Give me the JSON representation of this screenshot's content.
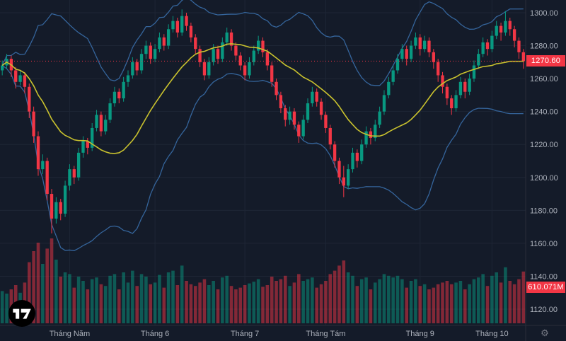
{
  "ui": {
    "price_badge": "1270.60",
    "volume_badge": "610.071M",
    "gear_icon": "⚙",
    "logo_name": "tradingview"
  },
  "colors": {
    "background": "#141b29",
    "grid": "#1e2635",
    "axis_text": "#aeb3bd",
    "separator": "#2a2e39",
    "up": "#089981",
    "down": "#f23645",
    "volume_up": "#089981",
    "volume_down": "#f23645",
    "band": "#35659c",
    "basis": "#c9c22e",
    "last_price_line": "#f23645",
    "badge_bg": "#f23645",
    "badge_text": "#ffffff"
  },
  "chart_data": {
    "type": "candlestick",
    "title": "",
    "xlabel": "",
    "ylabel": "",
    "ylim": [
      1120,
      1300
    ],
    "grid": true,
    "last_price": 1270.6,
    "last_price_label": "1270.60",
    "last_volume_label": "610.071M",
    "y_ticks": [
      {
        "value": 1300,
        "label": "1300.00"
      },
      {
        "value": 1280,
        "label": "1280.00"
      },
      {
        "value": 1260,
        "label": "1260.00"
      },
      {
        "value": 1240,
        "label": "1240.00"
      },
      {
        "value": 1220,
        "label": "1220.00"
      },
      {
        "value": 1200,
        "label": "1200.00"
      },
      {
        "value": 1180,
        "label": "1180.00"
      },
      {
        "value": 1160,
        "label": "1160.00"
      },
      {
        "value": 1140,
        "label": "1140.00"
      },
      {
        "value": 1120,
        "label": "1120.00"
      }
    ],
    "x_ticks": [
      {
        "label": "Tháng Năm",
        "index": 15
      },
      {
        "label": "Tháng 6",
        "index": 34
      },
      {
        "label": "Tháng 7",
        "index": 54
      },
      {
        "label": "Tháng Tám",
        "index": 72
      },
      {
        "label": "Tháng 9",
        "index": 93
      },
      {
        "label": "Tháng 10",
        "index": 109
      }
    ],
    "indicators": {
      "bollinger": {
        "period": 20,
        "stddev": 2
      }
    },
    "candles_format": [
      "open",
      "high",
      "low",
      "close",
      "volume"
    ],
    "candles": [
      [
        1265,
        1271,
        1262,
        1268,
        38
      ],
      [
        1268,
        1275,
        1266,
        1272,
        35
      ],
      [
        1272,
        1274,
        1261,
        1265,
        40
      ],
      [
        1265,
        1267,
        1254,
        1258,
        45
      ],
      [
        1258,
        1265,
        1256,
        1262,
        36
      ],
      [
        1262,
        1264,
        1251,
        1255,
        48
      ],
      [
        1255,
        1257,
        1236,
        1240,
        72
      ],
      [
        1240,
        1243,
        1221,
        1225,
        85
      ],
      [
        1225,
        1228,
        1201,
        1205,
        95
      ],
      [
        1205,
        1214,
        1202,
        1210,
        70
      ],
      [
        1210,
        1212,
        1186,
        1190,
        88
      ],
      [
        1190,
        1193,
        1166,
        1175,
        100
      ],
      [
        1175,
        1188,
        1172,
        1185,
        75
      ],
      [
        1185,
        1187,
        1174,
        1178,
        55
      ],
      [
        1178,
        1198,
        1176,
        1195,
        60
      ],
      [
        1195,
        1208,
        1192,
        1205,
        58
      ],
      [
        1205,
        1207,
        1196,
        1200,
        42
      ],
      [
        1200,
        1218,
        1198,
        1215,
        55
      ],
      [
        1215,
        1225,
        1212,
        1222,
        50
      ],
      [
        1222,
        1224,
        1214,
        1218,
        40
      ],
      [
        1218,
        1233,
        1216,
        1230,
        52
      ],
      [
        1230,
        1241,
        1228,
        1238,
        54
      ],
      [
        1238,
        1240,
        1225,
        1228,
        46
      ],
      [
        1228,
        1238,
        1226,
        1235,
        44
      ],
      [
        1235,
        1248,
        1233,
        1245,
        56
      ],
      [
        1245,
        1255,
        1243,
        1252,
        58
      ],
      [
        1252,
        1254,
        1245,
        1248,
        40
      ],
      [
        1248,
        1261,
        1246,
        1258,
        60
      ],
      [
        1258,
        1265,
        1255,
        1262,
        48
      ],
      [
        1262,
        1273,
        1260,
        1270,
        62
      ],
      [
        1270,
        1272,
        1262,
        1265,
        44
      ],
      [
        1265,
        1278,
        1263,
        1275,
        58
      ],
      [
        1275,
        1283,
        1272,
        1280,
        55
      ],
      [
        1280,
        1282,
        1269,
        1272,
        46
      ],
      [
        1272,
        1281,
        1270,
        1278,
        48
      ],
      [
        1278,
        1288,
        1276,
        1285,
        57
      ],
      [
        1285,
        1287,
        1277,
        1280,
        42
      ],
      [
        1280,
        1293,
        1278,
        1290,
        60
      ],
      [
        1290,
        1298,
        1288,
        1295,
        62
      ],
      [
        1295,
        1297,
        1285,
        1288,
        45
      ],
      [
        1288,
        1302,
        1286,
        1298,
        68
      ],
      [
        1298,
        1300,
        1289,
        1292,
        50
      ],
      [
        1292,
        1294,
        1282,
        1285,
        46
      ],
      [
        1285,
        1287,
        1275,
        1278,
        44
      ],
      [
        1278,
        1280,
        1267,
        1270,
        48
      ],
      [
        1270,
        1272,
        1259,
        1262,
        52
      ],
      [
        1262,
        1273,
        1260,
        1270,
        45
      ],
      [
        1270,
        1281,
        1268,
        1278,
        50
      ],
      [
        1278,
        1280,
        1269,
        1272,
        40
      ],
      [
        1272,
        1285,
        1270,
        1282,
        54
      ],
      [
        1282,
        1291,
        1280,
        1288,
        56
      ],
      [
        1288,
        1290,
        1277,
        1280,
        44
      ],
      [
        1280,
        1282,
        1271,
        1274,
        40
      ],
      [
        1274,
        1276,
        1265,
        1268,
        42
      ],
      [
        1268,
        1270,
        1259,
        1262,
        45
      ],
      [
        1262,
        1273,
        1260,
        1270,
        47
      ],
      [
        1270,
        1280,
        1268,
        1277,
        49
      ],
      [
        1277,
        1286,
        1275,
        1283,
        52
      ],
      [
        1283,
        1285,
        1273,
        1276,
        43
      ],
      [
        1276,
        1278,
        1265,
        1268,
        45
      ],
      [
        1268,
        1270,
        1255,
        1258,
        55
      ],
      [
        1258,
        1260,
        1247,
        1250,
        50
      ],
      [
        1250,
        1252,
        1239,
        1242,
        52
      ],
      [
        1242,
        1244,
        1231,
        1235,
        56
      ],
      [
        1235,
        1243,
        1232,
        1240,
        44
      ],
      [
        1240,
        1242,
        1229,
        1232,
        48
      ],
      [
        1232,
        1234,
        1221,
        1225,
        58
      ],
      [
        1225,
        1238,
        1223,
        1235,
        50
      ],
      [
        1235,
        1248,
        1233,
        1245,
        52
      ],
      [
        1245,
        1255,
        1243,
        1252,
        54
      ],
      [
        1252,
        1254,
        1243,
        1246,
        42
      ],
      [
        1246,
        1248,
        1235,
        1238,
        46
      ],
      [
        1238,
        1240,
        1227,
        1230,
        50
      ],
      [
        1230,
        1232,
        1217,
        1220,
        58
      ],
      [
        1220,
        1222,
        1206,
        1210,
        62
      ],
      [
        1210,
        1212,
        1196,
        1200,
        68
      ],
      [
        1200,
        1207,
        1188,
        1195,
        74
      ],
      [
        1195,
        1208,
        1193,
        1205,
        60
      ],
      [
        1205,
        1218,
        1203,
        1215,
        56
      ],
      [
        1215,
        1217,
        1206,
        1210,
        44
      ],
      [
        1210,
        1223,
        1208,
        1220,
        52
      ],
      [
        1220,
        1231,
        1218,
        1228,
        54
      ],
      [
        1228,
        1230,
        1220,
        1224,
        40
      ],
      [
        1224,
        1235,
        1222,
        1232,
        48
      ],
      [
        1232,
        1243,
        1230,
        1240,
        52
      ],
      [
        1240,
        1253,
        1238,
        1250,
        58
      ],
      [
        1250,
        1261,
        1248,
        1258,
        56
      ],
      [
        1258,
        1268,
        1256,
        1265,
        54
      ],
      [
        1265,
        1275,
        1263,
        1272,
        56
      ],
      [
        1272,
        1281,
        1270,
        1278,
        52
      ],
      [
        1278,
        1280,
        1268,
        1272,
        42
      ],
      [
        1272,
        1283,
        1270,
        1280,
        50
      ],
      [
        1280,
        1288,
        1278,
        1285,
        52
      ],
      [
        1285,
        1287,
        1274,
        1278,
        44
      ],
      [
        1278,
        1286,
        1276,
        1283,
        46
      ],
      [
        1283,
        1285,
        1273,
        1276,
        40
      ],
      [
        1276,
        1278,
        1266,
        1270,
        42
      ],
      [
        1270,
        1272,
        1258,
        1262,
        46
      ],
      [
        1262,
        1264,
        1251,
        1255,
        48
      ],
      [
        1255,
        1257,
        1244,
        1248,
        50
      ],
      [
        1248,
        1250,
        1238,
        1242,
        46
      ],
      [
        1242,
        1253,
        1240,
        1250,
        48
      ],
      [
        1250,
        1261,
        1248,
        1258,
        50
      ],
      [
        1258,
        1260,
        1248,
        1252,
        40
      ],
      [
        1252,
        1263,
        1250,
        1260,
        46
      ],
      [
        1260,
        1271,
        1258,
        1268,
        52
      ],
      [
        1268,
        1278,
        1266,
        1275,
        54
      ],
      [
        1275,
        1285,
        1273,
        1282,
        58
      ],
      [
        1282,
        1284,
        1274,
        1278,
        44
      ],
      [
        1278,
        1289,
        1276,
        1286,
        56
      ],
      [
        1286,
        1295,
        1284,
        1292,
        60
      ],
      [
        1292,
        1294,
        1283,
        1288,
        48
      ],
      [
        1288,
        1301,
        1286,
        1295,
        66
      ],
      [
        1295,
        1297,
        1286,
        1290,
        50
      ],
      [
        1290,
        1292,
        1279,
        1283,
        46
      ],
      [
        1283,
        1285,
        1272,
        1276,
        52
      ],
      [
        1276,
        1278,
        1266,
        1270.6,
        61
      ]
    ]
  }
}
